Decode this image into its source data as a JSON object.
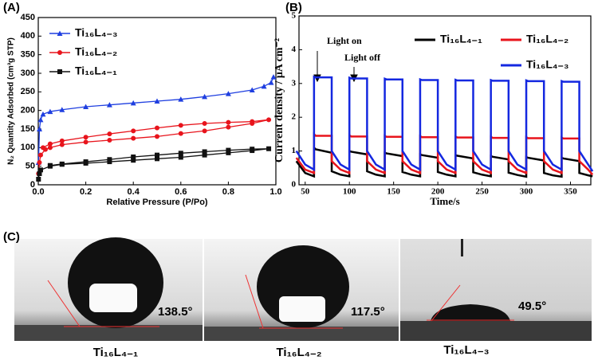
{
  "chart_data": [
    {
      "type": "line",
      "panel": "(A)",
      "x_label": "Relative Pressure (P/Po)",
      "y_label": "N₂ Quantity Adsorbed (cm³g STP)",
      "xlim": [
        0,
        1
      ],
      "ylim": [
        0,
        450
      ],
      "xticks": [
        {
          "value": 0,
          "label": "0.0"
        },
        0.2,
        0.4,
        0.6,
        0.8,
        {
          "value": 1,
          "label": "1.0"
        }
      ],
      "yticks": [
        0,
        50,
        100,
        150,
        200,
        250,
        300,
        350,
        400,
        450
      ],
      "grid": false,
      "legend": "top-left",
      "series": [
        {
          "name": "Ti₁₆L₄₋₃",
          "color": "#1f3fe0",
          "marker": "triangle",
          "x": [
            0.001,
            0.005,
            0.01,
            0.02,
            0.05,
            0.1,
            0.2,
            0.3,
            0.4,
            0.5,
            0.6,
            0.7,
            0.8,
            0.9,
            0.95,
            0.98,
            0.99
          ],
          "values": [
            60,
            150,
            175,
            190,
            197,
            202,
            210,
            215,
            220,
            225,
            230,
            237,
            245,
            255,
            265,
            275,
            290
          ]
        },
        {
          "name": "Ti₁₆L₄₋₂",
          "color": "#e8141c",
          "marker": "circle",
          "x": [
            0.001,
            0.005,
            0.01,
            0.03,
            0.05,
            0.1,
            0.2,
            0.3,
            0.4,
            0.5,
            0.6,
            0.7,
            0.8,
            0.9,
            0.97,
            0.9,
            0.8,
            0.7,
            0.6,
            0.5,
            0.4,
            0.3,
            0.2,
            0.1,
            0.05,
            0.02
          ],
          "values": [
            30,
            60,
            80,
            95,
            100,
            108,
            115,
            120,
            125,
            130,
            138,
            145,
            155,
            165,
            175,
            170,
            168,
            165,
            160,
            153,
            145,
            137,
            128,
            118,
            110,
            100
          ]
        },
        {
          "name": "Ti₁₆L₄₋₁",
          "color": "#111111",
          "marker": "square",
          "x": [
            0.001,
            0.005,
            0.01,
            0.05,
            0.1,
            0.2,
            0.3,
            0.4,
            0.5,
            0.6,
            0.7,
            0.8,
            0.9,
            0.97,
            0.9,
            0.8,
            0.7,
            0.6,
            0.5,
            0.4,
            0.3,
            0.2,
            0.1,
            0.05
          ],
          "values": [
            15,
            30,
            40,
            50,
            55,
            58,
            62,
            66,
            70,
            74,
            80,
            86,
            92,
            97,
            96,
            93,
            89,
            85,
            80,
            75,
            68,
            62,
            56,
            52
          ]
        }
      ]
    },
    {
      "type": "line",
      "panel": "(B)",
      "x_label": "Time/s",
      "y_label": "Current density / μA cm⁻²",
      "annotations": [
        "Light on",
        "Light off"
      ],
      "xlim": [
        43,
        373
      ],
      "ylim": [
        0,
        5
      ],
      "xticks": [
        50,
        100,
        150,
        200,
        250,
        300,
        350
      ],
      "yticks": [
        0,
        1,
        2,
        3,
        4,
        5
      ],
      "grid": false,
      "legend": "top-right",
      "x": [
        40,
        50,
        60,
        60,
        62,
        80,
        80,
        90,
        100,
        100,
        102,
        120,
        120,
        130,
        140,
        140,
        142,
        160,
        160,
        170,
        180,
        180,
        182,
        200,
        200,
        210,
        220,
        220,
        222,
        240,
        240,
        250,
        260,
        260,
        262,
        280,
        280,
        290,
        300,
        300,
        302,
        320,
        320,
        330,
        340,
        340,
        342,
        360,
        360,
        370,
        375
      ],
      "series": [
        {
          "name": "Ti₁₆L₄₋₁",
          "color": "#000000",
          "values": [
            0.7,
            0.35,
            0.25,
            1.1,
            1.05,
            0.95,
            0.4,
            0.3,
            0.25,
            1.0,
            0.98,
            0.9,
            0.4,
            0.3,
            0.25,
            0.95,
            0.93,
            0.85,
            0.38,
            0.3,
            0.25,
            0.9,
            0.88,
            0.8,
            0.38,
            0.3,
            0.25,
            0.88,
            0.86,
            0.78,
            0.37,
            0.3,
            0.25,
            0.85,
            0.83,
            0.75,
            0.36,
            0.29,
            0.24,
            0.82,
            0.8,
            0.72,
            0.35,
            0.28,
            0.24,
            0.8,
            0.78,
            0.7,
            0.35,
            0.28,
            0.25
          ]
        },
        {
          "name": "Ti₁₆L₄₋₂",
          "color": "#e8141c",
          "values": [
            0.8,
            0.45,
            0.35,
            1.5,
            1.45,
            1.45,
            0.7,
            0.45,
            0.35,
            1.47,
            1.43,
            1.43,
            0.7,
            0.45,
            0.35,
            1.45,
            1.42,
            1.42,
            0.7,
            0.45,
            0.35,
            1.44,
            1.41,
            1.41,
            0.7,
            0.45,
            0.35,
            1.43,
            1.4,
            1.4,
            0.7,
            0.45,
            0.35,
            1.42,
            1.39,
            1.39,
            0.7,
            0.45,
            0.35,
            1.41,
            1.38,
            1.38,
            0.7,
            0.45,
            0.35,
            1.4,
            1.37,
            1.37,
            0.7,
            0.45,
            0.3
          ]
        },
        {
          "name": "Ti₁₆L₄₋₃",
          "color": "#1428e0",
          "values": [
            1.0,
            0.6,
            0.45,
            3.2,
            3.18,
            3.18,
            1.0,
            0.6,
            0.45,
            3.17,
            3.15,
            3.15,
            1.0,
            0.6,
            0.45,
            3.14,
            3.12,
            3.12,
            1.0,
            0.6,
            0.45,
            3.12,
            3.1,
            3.1,
            1.0,
            0.6,
            0.45,
            3.11,
            3.09,
            3.09,
            1.0,
            0.6,
            0.45,
            3.1,
            3.08,
            3.08,
            1.0,
            0.6,
            0.45,
            3.09,
            3.07,
            3.07,
            1.0,
            0.6,
            0.45,
            3.07,
            3.05,
            3.05,
            1.0,
            0.6,
            0.4
          ]
        }
      ]
    }
  ],
  "panel_c": {
    "label": "(C)",
    "images": [
      {
        "angle": "138.5°",
        "name": "Ti₁₆L₄₋₁"
      },
      {
        "angle": "117.5°",
        "name": "Ti₁₆L₄₋₂"
      },
      {
        "angle": "49.5°",
        "name": "Ti₁₆L₄₋₃"
      }
    ]
  }
}
